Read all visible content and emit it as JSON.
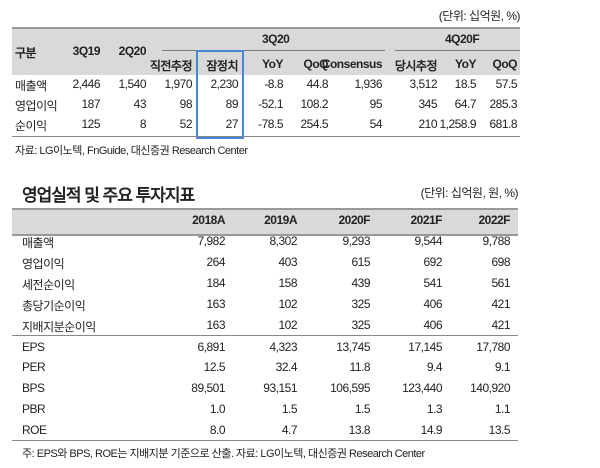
{
  "table1": {
    "unit": "(단위: 십억원, %)",
    "headers": {
      "label": "구분",
      "c1": "3Q19",
      "c2": "2Q20",
      "group1": "3Q20",
      "group2": "4Q20F",
      "sub": [
        "직전추정",
        "잠정치",
        "YoY",
        "QoQ",
        "Consensus",
        "당시추정",
        "YoY",
        "QoQ"
      ]
    },
    "rows": [
      {
        "label": "매출액",
        "values": [
          "2,446",
          "1,540",
          "1,970",
          "2,230",
          "-8.8",
          "44.8",
          "1,936",
          "3,512",
          "18.5",
          "57.5"
        ]
      },
      {
        "label": "영업이익",
        "values": [
          "187",
          "43",
          "98",
          "89",
          "-52.1",
          "108.2",
          "95",
          "345",
          "64.7",
          "285.3"
        ]
      },
      {
        "label": "순이익",
        "values": [
          "125",
          "8",
          "52",
          "27",
          "-78.5",
          "254.5",
          "54",
          "210",
          "1,258.9",
          "681.8"
        ]
      }
    ],
    "highlight_color": "#4a86d8",
    "source": "자료: LG이노텍, FnGuide, 대신증권 Research Center"
  },
  "table2": {
    "title": "영업실적 및 주요 투자지표",
    "unit": "(단위: 십억원, 원, %)",
    "headers": [
      "2018A",
      "2019A",
      "2020F",
      "2021F",
      "2022F"
    ],
    "rows": [
      {
        "label": "매출액",
        "values": [
          "7,982",
          "8,302",
          "9,293",
          "9,544",
          "9,788"
        ]
      },
      {
        "label": "영업이익",
        "values": [
          "264",
          "403",
          "615",
          "692",
          "698"
        ]
      },
      {
        "label": "세전순이익",
        "values": [
          "184",
          "158",
          "439",
          "541",
          "561"
        ]
      },
      {
        "label": "총당기순이익",
        "values": [
          "163",
          "102",
          "325",
          "406",
          "421"
        ]
      },
      {
        "label": "지배지분순이익",
        "values": [
          "163",
          "102",
          "325",
          "406",
          "421"
        ]
      },
      {
        "label": "EPS",
        "values": [
          "6,891",
          "4,323",
          "13,745",
          "17,145",
          "17,780"
        ]
      },
      {
        "label": "PER",
        "values": [
          "12.5",
          "32.4",
          "11.8",
          "9.4",
          "9.1"
        ]
      },
      {
        "label": "BPS",
        "values": [
          "89,501",
          "93,151",
          "106,595",
          "123,440",
          "140,920"
        ]
      },
      {
        "label": "PBR",
        "values": [
          "1.0",
          "1.5",
          "1.5",
          "1.3",
          "1.1"
        ]
      },
      {
        "label": "ROE",
        "values": [
          "8.0",
          "4.7",
          "13.8",
          "14.9",
          "13.5"
        ]
      }
    ],
    "note": "주: EPS와 BPS, ROE는 지배지분 기준으로 산출. 자료: LG이노텍, 대신증권 Research Center"
  }
}
